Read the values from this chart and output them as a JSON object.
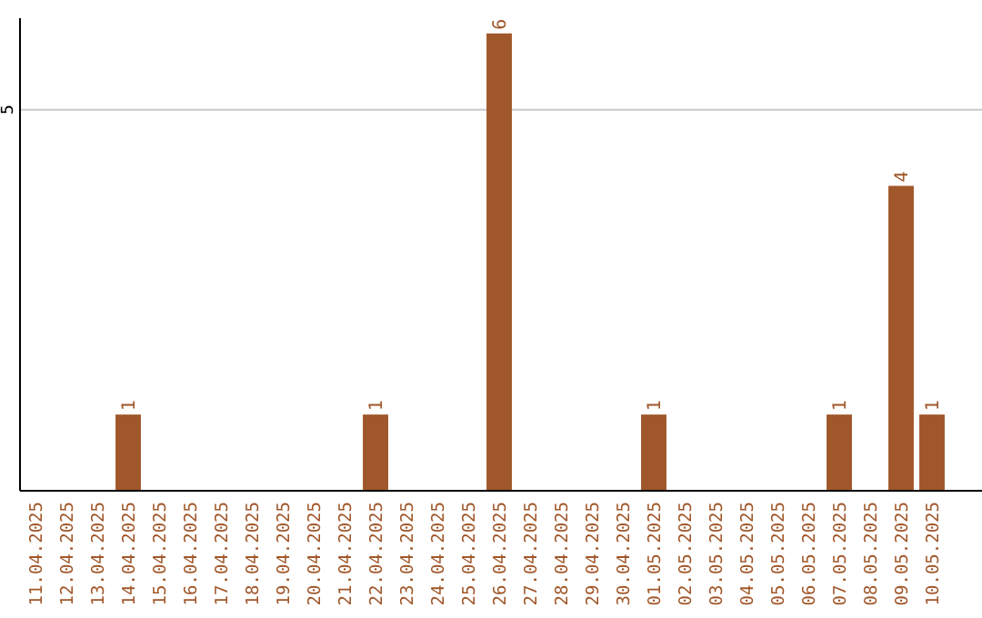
{
  "chart_data": {
    "type": "bar",
    "categories": [
      "11.04.2025",
      "12.04.2025",
      "13.04.2025",
      "14.04.2025",
      "15.04.2025",
      "16.04.2025",
      "17.04.2025",
      "18.04.2025",
      "19.04.2025",
      "20.04.2025",
      "21.04.2025",
      "22.04.2025",
      "23.04.2025",
      "24.04.2025",
      "25.04.2025",
      "26.04.2025",
      "27.04.2025",
      "28.04.2025",
      "29.04.2025",
      "30.04.2025",
      "01.05.2025",
      "02.05.2025",
      "03.05.2025",
      "04.05.2025",
      "05.05.2025",
      "06.05.2025",
      "07.05.2025",
      "08.05.2025",
      "09.05.2025",
      "10.05.2025"
    ],
    "values": [
      0,
      0,
      0,
      1,
      0,
      0,
      0,
      0,
      0,
      0,
      0,
      1,
      0,
      0,
      0,
      6,
      0,
      0,
      0,
      0,
      1,
      0,
      0,
      0,
      0,
      0,
      1,
      0,
      4,
      1
    ],
    "value_labels": [
      null,
      null,
      null,
      "1",
      null,
      null,
      null,
      null,
      null,
      null,
      null,
      "1",
      null,
      null,
      null,
      "6",
      null,
      null,
      null,
      null,
      "1",
      null,
      null,
      null,
      null,
      null,
      "1",
      null,
      "4",
      "1"
    ],
    "color": "#a0572a",
    "ylim": [
      0,
      6.2
    ],
    "yticks": [
      5
    ],
    "grid": "y"
  }
}
